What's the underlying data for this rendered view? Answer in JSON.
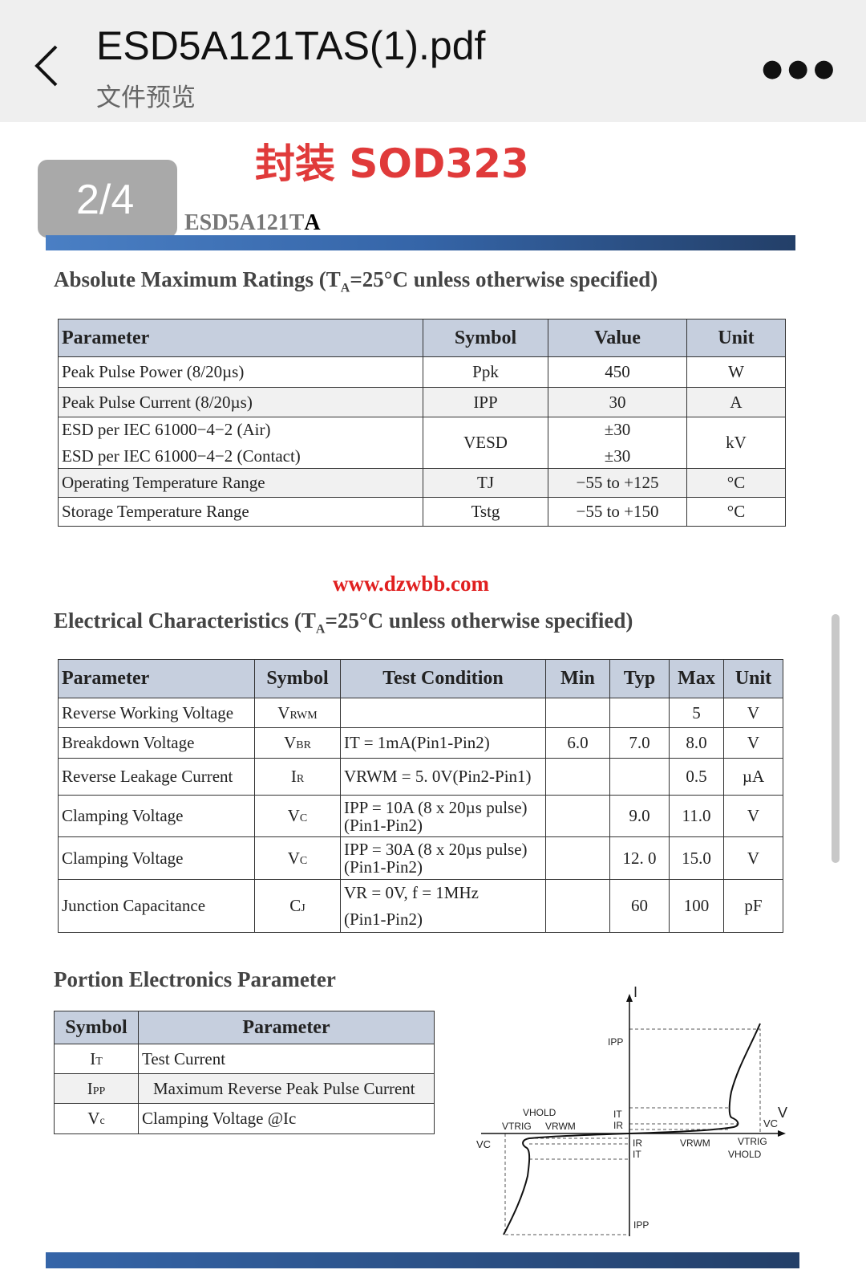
{
  "header": {
    "title": "ESD5A121TAS(1).pdf",
    "subtitle": "文件预览",
    "back_icon": "chevron-left-icon",
    "more_icon": "more-horizontal-icon"
  },
  "page_indicator": "2/4",
  "annotation": "封装 SOD323",
  "watermark": "www.dzwbb.com",
  "doc": {
    "part_name_faded": "ESD5A121T",
    "part_name_tail": "A",
    "abs_title_pre": "Absolute Maximum Ratings (T",
    "abs_title_sub": "A",
    "abs_title_post": "=25°C unless otherwise specified)",
    "abs_headers": [
      "Parameter",
      "Symbol",
      "Value",
      "Unit"
    ],
    "abs_rows": [
      {
        "param": "Peak Pulse Power (8/20µs)",
        "symbol": "Ppk",
        "value": "450",
        "unit": "W"
      },
      {
        "param": "Peak Pulse Current (8/20µs)",
        "symbol": "IPP",
        "value": "30",
        "unit": "A"
      },
      {
        "param": "ESD per IEC 61000−4−2 (Air)",
        "param2": "ESD per IEC 61000−4−2 (Contact)",
        "symbol": "VESD",
        "value": "±30",
        "value2": "±30",
        "unit": "kV"
      },
      {
        "param": "Operating Temperature Range",
        "symbol": "TJ",
        "value": "−55 to +125",
        "unit": "°C"
      },
      {
        "param": "Storage Temperature Range",
        "symbol": "Tstg",
        "value": "−55 to +150",
        "unit": "°C"
      }
    ],
    "elec_title_pre": "Electrical Characteristics (T",
    "elec_title_sub": "A",
    "elec_title_post": "=25°C unless otherwise specified)",
    "elec_headers": [
      "Parameter",
      "Symbol",
      "Test Condition",
      "Min",
      "Typ",
      "Max",
      "Unit"
    ],
    "elec_rows": [
      {
        "param": "Reverse Working Voltage",
        "sym": "V",
        "sub": "RWM",
        "cond": "",
        "cond2": "",
        "min": "",
        "typ": "",
        "max": "5",
        "unit": "V"
      },
      {
        "param": "Breakdown Voltage",
        "sym": "V",
        "sub": "BR",
        "cond": "IT = 1mA(Pin1-Pin2)",
        "cond2": "",
        "min": "6.0",
        "typ": "7.0",
        "max": "8.0",
        "unit": "V"
      },
      {
        "param": "Reverse Leakage Current",
        "sym": "I",
        "sub": "R",
        "cond": "VRWM = 5. 0V(Pin2-Pin1)",
        "cond2": "",
        "min": "",
        "typ": "",
        "max": "0.5",
        "unit": "µA"
      },
      {
        "param": "Clamping Voltage",
        "sym": "V",
        "sub": "C",
        "cond": "IPP = 10A (8 x 20µs pulse)",
        "cond2": "(Pin1-Pin2)",
        "min": "",
        "typ": "9.0",
        "max": "11.0",
        "unit": "V"
      },
      {
        "param": "Clamping Voltage",
        "sym": "V",
        "sub": "C",
        "cond": "IPP = 30A (8 x 20µs pulse)",
        "cond2": "(Pin1-Pin2)",
        "min": "",
        "typ": "12. 0",
        "max": "15.0",
        "unit": "V"
      },
      {
        "param": "Junction Capacitance",
        "sym": "C",
        "sub": "J",
        "cond": "VR = 0V, f = 1MHz",
        "cond2": "(Pin1-Pin2)",
        "min": "",
        "typ": "60",
        "max": "100",
        "unit": "pF"
      }
    ],
    "portion_title": "Portion Electronics Parameter",
    "portion_headers": [
      "Symbol",
      "Parameter"
    ],
    "portion_rows": [
      {
        "sym": "I",
        "sub": "T",
        "param": "Test Current"
      },
      {
        "sym": "I",
        "sub": "PP",
        "param": "Maximum Reverse Peak Pulse Current"
      },
      {
        "sym": "V",
        "sub": "c",
        "param": "Clamping Voltage @Ic"
      }
    ],
    "diagram_labels": {
      "I": "I",
      "V": "V",
      "IPP": "IPP",
      "IT": "IT",
      "IR": "IR",
      "VC": "VC",
      "VRWM": "VRWM",
      "VTRIG": "VTRIG",
      "VHOLD": "VHOLD"
    }
  }
}
